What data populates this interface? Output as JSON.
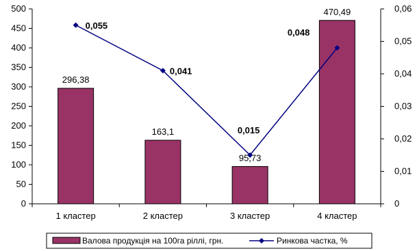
{
  "chart_data": {
    "type": "bar",
    "categories": [
      "1 кластер",
      "2 кластер",
      "3 кластер",
      "4 кластер"
    ],
    "series": [
      {
        "name": "Валова продукція на 100га ріллі, грн.",
        "type": "bar",
        "axis": "left",
        "values": [
          296.38,
          163.1,
          95.73,
          470.49
        ],
        "labels": [
          "296,38",
          "163,1",
          "95,73",
          "470,49"
        ],
        "color": "#993366"
      },
      {
        "name": "Ринкова частка, %",
        "type": "line",
        "axis": "right",
        "values": [
          0.055,
          0.041,
          0.015,
          0.048
        ],
        "labels": [
          "0,055",
          "0,041",
          "0,015",
          "0,048"
        ],
        "color": "#000080"
      }
    ],
    "y_left": {
      "lim": [
        0,
        500
      ],
      "ticks": [
        0,
        50,
        100,
        150,
        200,
        250,
        300,
        350,
        400,
        450,
        500
      ],
      "tick_labels": [
        "0",
        "50",
        "100",
        "150",
        "200",
        "250",
        "300",
        "350",
        "400",
        "450",
        "500"
      ]
    },
    "y_right": {
      "lim": [
        0,
        0.06
      ],
      "ticks": [
        0,
        0.01,
        0.02,
        0.03,
        0.04,
        0.05,
        0.06
      ],
      "tick_labels": [
        "0",
        "0,01",
        "0,02",
        "0,03",
        "0,04",
        "0,05",
        "0,06"
      ]
    },
    "grid": false,
    "legend_position": "bottom"
  }
}
